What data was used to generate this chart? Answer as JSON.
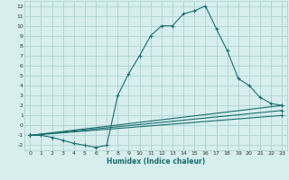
{
  "xlabel": "Humidex (Indice chaleur)",
  "bg_color": "#d6eeee",
  "grid_color": "#a8cccc",
  "line_color": "#1a6e6e",
  "xlim": [
    -0.5,
    23.5
  ],
  "ylim": [
    -2.5,
    12.5
  ],
  "xticks": [
    0,
    1,
    2,
    3,
    4,
    5,
    6,
    7,
    8,
    9,
    10,
    11,
    12,
    13,
    14,
    15,
    16,
    17,
    18,
    19,
    20,
    21,
    22,
    23
  ],
  "yticks": [
    -2,
    -1,
    0,
    1,
    2,
    3,
    4,
    5,
    6,
    7,
    8,
    9,
    10,
    11,
    12
  ],
  "series1": [
    [
      0,
      -1
    ],
    [
      1,
      -1
    ],
    [
      2,
      -1.2
    ],
    [
      3,
      -1.5
    ],
    [
      4,
      -1.8
    ],
    [
      5,
      -2.0
    ],
    [
      6,
      -2.2
    ],
    [
      7,
      -2.0
    ],
    [
      8,
      3.0
    ],
    [
      9,
      5.2
    ],
    [
      10,
      7.0
    ],
    [
      11,
      9.0
    ],
    [
      12,
      10.0
    ],
    [
      13,
      10.0
    ],
    [
      14,
      11.2
    ],
    [
      15,
      11.5
    ],
    [
      16,
      12.0
    ],
    [
      17,
      9.7
    ],
    [
      18,
      7.5
    ],
    [
      19,
      4.7
    ],
    [
      20,
      4.0
    ],
    [
      21,
      2.8
    ],
    [
      22,
      2.2
    ],
    [
      23,
      2.0
    ]
  ],
  "series2": [
    [
      0,
      -1
    ],
    [
      23,
      2.0
    ]
  ],
  "series3": [
    [
      0,
      -1
    ],
    [
      23,
      1.5
    ]
  ],
  "series4": [
    [
      0,
      -1
    ],
    [
      23,
      1.0
    ]
  ]
}
